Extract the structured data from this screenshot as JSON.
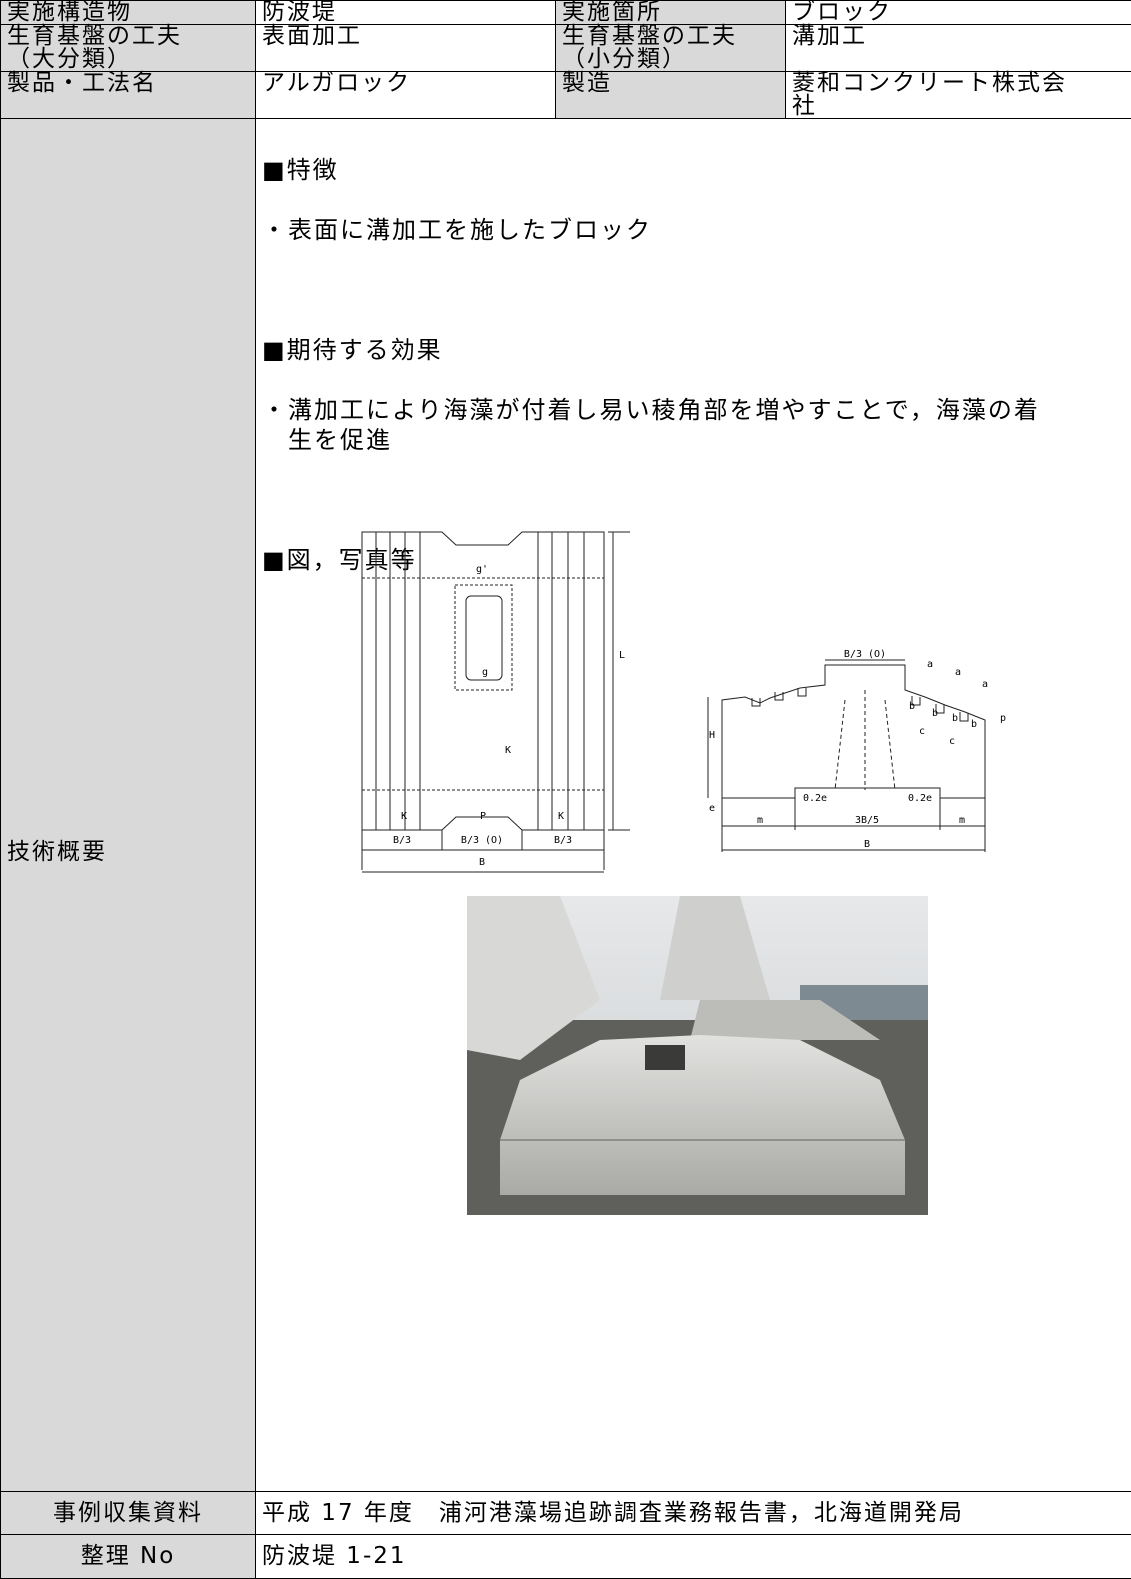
{
  "rows": [
    {
      "label": "実施構造物",
      "value": "防波堤",
      "label2": "実施箇所",
      "value2": "ブロック"
    },
    {
      "label": "生育基盤の工夫\n（大分類）",
      "value": "表面加工",
      "label2": "生育基盤の工夫\n（小分類）",
      "value2": "溝加工"
    },
    {
      "label": "製品・工法名",
      "value": "アルガロック",
      "label2": "製造",
      "value2": "菱和コンクリート株式会\n社"
    }
  ],
  "overview": {
    "label": "技術概要",
    "features_heading": "■特徴",
    "features": [
      "・表面に溝加工を施したブロック"
    ],
    "effects_heading": "■期待する効果",
    "effects": [
      "・溝加工により海藻が付着し易い稜角部を増やすことで，海藻の着\n　生を促進"
    ],
    "figures_heading": "■図，写真等",
    "plan_labels": [
      "g'",
      "g",
      "L",
      "K",
      "K",
      "P",
      "K",
      "B/3",
      "B/3 (O)",
      "B/3",
      "B"
    ],
    "section_labels": [
      "B/3 (O)",
      "a",
      "a",
      "a",
      "b",
      "b",
      "b",
      "b",
      "c",
      "c",
      "p",
      "H",
      "e",
      "0.2e",
      "0.2e",
      "m",
      "3B/5",
      "m",
      "B"
    ]
  },
  "source": {
    "label": "事例収集資料",
    "value": "平成 17 年度　浦河港藻場追跡調査業務報告書，北海道開発局"
  },
  "number": {
    "label": "整理 No",
    "value": "防波堤 1-21"
  }
}
